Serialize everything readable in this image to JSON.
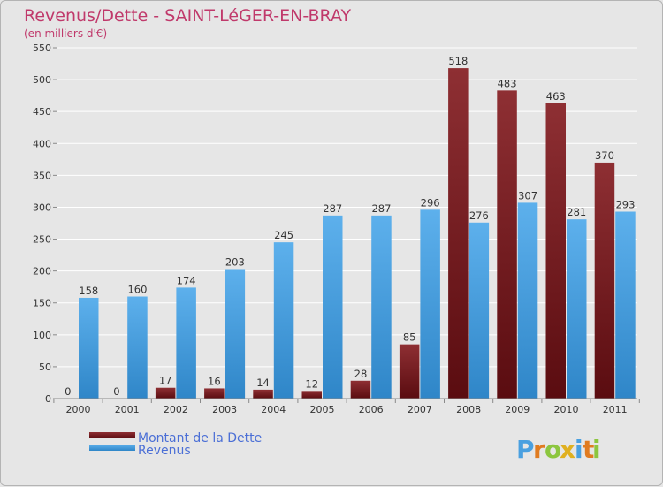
{
  "chart_data": {
    "type": "bar",
    "title": "Revenus/Dette - SAINT-LéGER-EN-BRAY",
    "subtitle": "(en milliers d'€)",
    "xlabel": "",
    "ylabel": "",
    "ylim": [
      0,
      550
    ],
    "yticks": [
      0,
      50,
      100,
      150,
      200,
      250,
      300,
      350,
      400,
      450,
      500,
      550
    ],
    "grid": true,
    "legend_position": "bottom-left",
    "categories": [
      "2000",
      "2001",
      "2002",
      "2003",
      "2004",
      "2005",
      "2006",
      "2007",
      "2008",
      "2009",
      "2010",
      "2011"
    ],
    "series": [
      {
        "name": "Montant de la Dette",
        "color": "#7a1e22",
        "values": [
          0,
          0,
          17,
          16,
          14,
          12,
          28,
          85,
          518,
          483,
          463,
          370
        ]
      },
      {
        "name": "Revenus",
        "color": "#4aa0e0",
        "values": [
          158,
          160,
          174,
          203,
          245,
          287,
          287,
          296,
          276,
          307,
          281,
          293
        ]
      }
    ]
  },
  "logo": {
    "letters": [
      "P",
      "r",
      "o",
      "x",
      "i",
      "t",
      "i"
    ],
    "colors": [
      "#4aa0e0",
      "#e07b20",
      "#8cc63f",
      "#e0b020",
      "#4aa0e0",
      "#e07b20",
      "#8cc63f"
    ]
  }
}
